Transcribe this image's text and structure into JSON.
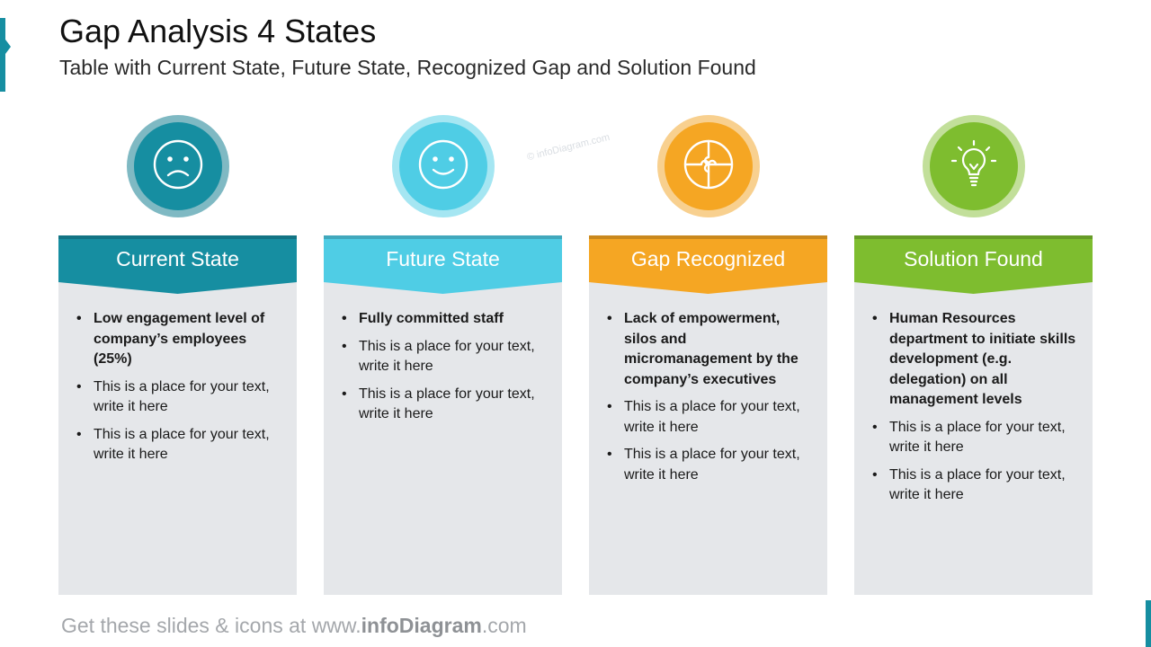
{
  "page": {
    "title": "Gap Analysis 4 States",
    "subtitle": "Table with Current State, Future State, Recognized Gap and Solution Found"
  },
  "watermark": "© infoDiagram.com",
  "columns": [
    {
      "header": "Current State",
      "icon": "sad-face-icon",
      "color": "#168ea1",
      "ring": "#7fb9c3",
      "bullets": [
        {
          "text": "Low engagement level of company’s employees (25%)",
          "bold": true
        },
        {
          "text": "This is a place for your text, write it here",
          "bold": false
        },
        {
          "text": "This is a place for your text, write it here",
          "bold": false
        }
      ]
    },
    {
      "header": "Future State",
      "icon": "smiley-face-icon",
      "color": "#4fcde5",
      "ring": "#a5e6f2",
      "bullets": [
        {
          "text": "Fully committed staff",
          "bold": true
        },
        {
          "text": "This is a place for your text, write it here",
          "bold": false
        },
        {
          "text": "This is a place for your text, write it here",
          "bold": false
        }
      ]
    },
    {
      "header": "Gap Recognized",
      "icon": "puzzle-icon",
      "color": "#f5a623",
      "ring": "#f8d08f",
      "bullets": [
        {
          "text": "Lack of empowerment, silos and micromanagement by the company’s executives",
          "bold": true
        },
        {
          "text": "This is a place for your text, write it here",
          "bold": false
        },
        {
          "text": "This is a place for your text, write it here",
          "bold": false
        }
      ]
    },
    {
      "header": "Solution Found",
      "icon": "lightbulb-icon",
      "color": "#7ebd2f",
      "ring": "#c2df9a",
      "bullets": [
        {
          "text": "Human Resources department to initiate skills development (e.g. delegation) on all management levels",
          "bold": true
        },
        {
          "text": "This is a place for your text, write it here",
          "bold": false
        },
        {
          "text": "This is a place for your text, write it here",
          "bold": false
        }
      ]
    }
  ],
  "footer": {
    "prefix": "Get these slides & icons at www.",
    "brand": "infoDiagram",
    "suffix": ".com"
  }
}
